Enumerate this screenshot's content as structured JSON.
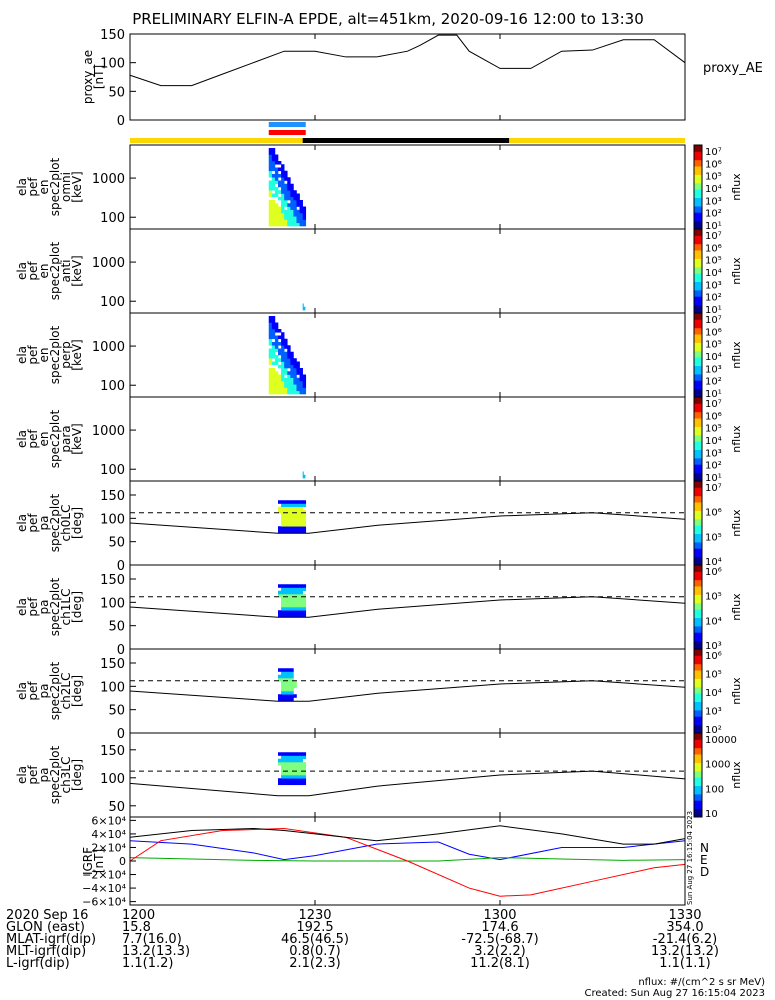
{
  "title": "PRELIMINARY ELFIN-A EPDE, alt=451km, 2020-09-16 12:00 to 13:30",
  "chart_data": [
    {
      "id": "proxy_ae",
      "type": "line",
      "ylabel": [
        "proxy_ae",
        "[nT]"
      ],
      "legend": "proxy_AE",
      "ylim": [
        0,
        150
      ],
      "yticks": [
        "0",
        "50",
        "100",
        "150"
      ],
      "x": [
        0,
        5,
        10,
        15,
        20,
        25,
        30,
        35,
        40,
        45,
        47,
        50,
        53,
        55,
        60,
        65,
        70,
        75,
        80,
        85,
        90
      ],
      "values": [
        78,
        60,
        60,
        80,
        100,
        120,
        120,
        110,
        110,
        120,
        130,
        148,
        148,
        120,
        90,
        90,
        120,
        122,
        140,
        140,
        100
      ]
    },
    {
      "id": "en_omni",
      "type": "heatmap",
      "ylabel": [
        "ela",
        "pef",
        "en",
        "spec2plot",
        "omni",
        "[keV]"
      ],
      "yticks": [
        "100",
        "1000"
      ],
      "ylim_keV": [
        50,
        7000
      ],
      "data_window_min": [
        22.5,
        28.5
      ],
      "colorbar": {
        "label": "nflux",
        "ticks": [
          "10⁷",
          "10⁶",
          "10⁵",
          "10⁴",
          "10³",
          "10²",
          "10¹"
        ]
      }
    },
    {
      "id": "en_anti",
      "type": "heatmap",
      "ylabel": [
        "ela",
        "pef",
        "en",
        "spec2plot",
        "anti",
        "[keV]"
      ],
      "yticks": [
        "100",
        "1000"
      ],
      "ylim_keV": [
        50,
        7000
      ],
      "data_window_min": [
        28.0,
        28.4
      ],
      "colorbar": {
        "label": "nflux",
        "ticks": [
          "10⁷",
          "10⁶",
          "10⁵",
          "10⁴",
          "10³",
          "10²",
          "10¹"
        ]
      }
    },
    {
      "id": "en_perp",
      "type": "heatmap",
      "ylabel": [
        "ela",
        "pef",
        "en",
        "spec2plot",
        "perp",
        "[keV]"
      ],
      "yticks": [
        "100",
        "1000"
      ],
      "ylim_keV": [
        50,
        7000
      ],
      "data_window_min": [
        22.5,
        28.5
      ],
      "colorbar": {
        "label": "nflux",
        "ticks": [
          "10⁷",
          "10⁶",
          "10⁵",
          "10⁴",
          "10³",
          "10²",
          "10¹"
        ]
      }
    },
    {
      "id": "en_para",
      "type": "heatmap",
      "ylabel": [
        "ela",
        "pef",
        "en",
        "spec2plot",
        "para",
        "[keV]"
      ],
      "yticks": [
        "100",
        "1000"
      ],
      "ylim_keV": [
        50,
        7000
      ],
      "data_window_min": [
        28.0,
        28.4
      ],
      "colorbar": {
        "label": "nflux",
        "ticks": [
          "10⁷",
          "10⁶",
          "10⁵",
          "10⁴",
          "10³",
          "10²",
          "10¹"
        ]
      }
    },
    {
      "id": "ch0LC",
      "type": "heatmap",
      "ylabel": [
        "ela",
        "pef",
        "pa",
        "spec2plot",
        "ch0LC",
        "[deg]"
      ],
      "yticks": [
        "0",
        "50",
        "100",
        "150"
      ],
      "ylim": [
        0,
        180
      ],
      "data_window_min": [
        24.0,
        28.5
      ],
      "loss_cone": {
        "x": [
          0,
          24,
          29,
          40,
          60,
          75,
          90
        ],
        "values": [
          90,
          68,
          68,
          85,
          105,
          112,
          98
        ]
      },
      "dashed_level": 112,
      "colorbar": {
        "label": "nflux",
        "ticks": [
          "10⁷",
          "10⁶",
          "10⁵",
          "10⁴"
        ]
      }
    },
    {
      "id": "ch1LC",
      "type": "heatmap",
      "ylabel": [
        "ela",
        "pef",
        "pa",
        "spec2plot",
        "ch1LC",
        "[deg]"
      ],
      "yticks": [
        "0",
        "50",
        "100",
        "150"
      ],
      "ylim": [
        0,
        180
      ],
      "data_window_min": [
        24.0,
        28.5
      ],
      "loss_cone": {
        "x": [
          0,
          24,
          29,
          40,
          60,
          75,
          90
        ],
        "values": [
          90,
          68,
          68,
          85,
          105,
          112,
          98
        ]
      },
      "dashed_level": 112,
      "colorbar": {
        "label": "nflux",
        "ticks": [
          "10⁶",
          "10⁵",
          "10⁴",
          "10³"
        ]
      }
    },
    {
      "id": "ch2LC",
      "type": "heatmap",
      "ylabel": [
        "ela",
        "pef",
        "pa",
        "spec2plot",
        "ch2LC",
        "[deg]"
      ],
      "yticks": [
        "0",
        "50",
        "100",
        "150"
      ],
      "ylim": [
        0,
        180
      ],
      "data_window_min": [
        24.0,
        27.0
      ],
      "loss_cone": {
        "x": [
          0,
          24,
          29,
          40,
          60,
          75,
          90
        ],
        "values": [
          90,
          68,
          68,
          85,
          105,
          112,
          98
        ]
      },
      "dashed_level": 112,
      "colorbar": {
        "label": "nflux",
        "ticks": [
          "10⁶",
          "10⁵",
          "10⁴",
          "10³",
          "10²"
        ]
      }
    },
    {
      "id": "ch3LC",
      "type": "heatmap",
      "ylabel": [
        "ela",
        "pef",
        "pa",
        "spec2plot",
        "ch3LC",
        "[deg]"
      ],
      "yticks": [
        "50",
        "100",
        "150"
      ],
      "ylim": [
        30,
        180
      ],
      "data_window_min": [
        24.0,
        28.5
      ],
      "loss_cone": {
        "x": [
          0,
          24,
          29,
          40,
          60,
          75,
          90
        ],
        "values": [
          90,
          68,
          68,
          85,
          105,
          112,
          98
        ]
      },
      "dashed_level": 112,
      "colorbar": {
        "label": "nflux",
        "ticks": [
          "10000",
          "1000",
          "100",
          "10"
        ]
      }
    },
    {
      "id": "igrf",
      "type": "line",
      "ylabel": [
        "IGRF",
        "[nT]"
      ],
      "ylim": [
        -65000,
        65000
      ],
      "yticks": [
        "6×10⁴",
        "4×10⁴",
        "2×10⁴",
        "0",
        "−2×10⁴",
        "−4×10⁴",
        "−6×10⁴"
      ],
      "ytick_values": [
        60000,
        40000,
        20000,
        0,
        -20000,
        -40000,
        -60000
      ],
      "series": [
        {
          "name": "N",
          "color": "#0000ff",
          "x": [
            0,
            10,
            20,
            25,
            30,
            40,
            50,
            55,
            60,
            70,
            80,
            90
          ],
          "values": [
            30000,
            25000,
            12000,
            2000,
            8000,
            25000,
            28000,
            10000,
            2000,
            20000,
            20000,
            30000
          ]
        },
        {
          "name": "E",
          "color": "#00aa00",
          "x": [
            0,
            10,
            20,
            30,
            40,
            50,
            60,
            70,
            80,
            90
          ],
          "values": [
            5000,
            3000,
            1000,
            0,
            0,
            0,
            5000,
            3000,
            1000,
            2000
          ]
        },
        {
          "name": "D",
          "color": "#ff0000",
          "x": [
            0,
            5,
            15,
            25,
            35,
            45,
            55,
            60,
            65,
            75,
            85,
            90
          ],
          "values": [
            0,
            30000,
            45000,
            48000,
            35000,
            0,
            -40000,
            -52000,
            -50000,
            -30000,
            -10000,
            -5000
          ]
        },
        {
          "name": "",
          "color": "#000000",
          "x": [
            0,
            10,
            20,
            25,
            30,
            40,
            50,
            60,
            70,
            80,
            85,
            90
          ],
          "values": [
            35000,
            45000,
            48000,
            45000,
            40000,
            30000,
            40000,
            52000,
            40000,
            25000,
            25000,
            33000
          ]
        }
      ]
    }
  ],
  "status_bars": {
    "science_bars": [
      {
        "color": "#1e90ff",
        "start_min": 22.5,
        "end_min": 28.5
      },
      {
        "color": "#ff0000",
        "start_min": 22.5,
        "end_min": 28.5
      }
    ],
    "sun_shadow": [
      {
        "color": "#ffd700",
        "start_min": 0,
        "end_min": 28
      },
      {
        "color": "#000000",
        "start_min": 28,
        "end_min": 61.5
      },
      {
        "color": "#ffd700",
        "start_min": 61.5,
        "end_min": 90
      }
    ]
  },
  "xaxis": {
    "xlim_min": [
      0,
      90
    ],
    "ticks": [
      {
        "label": "1200",
        "min": 0
      },
      {
        "label": "1230",
        "min": 30
      },
      {
        "label": "1300",
        "min": 60
      },
      {
        "label": "1330",
        "min": 90
      }
    ]
  },
  "annotation_rows": [
    {
      "label": "2020 Sep 16",
      "values": [
        "1200",
        "1230",
        "1300",
        "1330"
      ]
    },
    {
      "label": "GLON (east)",
      "values": [
        "15.8",
        "192.5",
        "174.6",
        "354.0"
      ]
    },
    {
      "label": "MLAT-igrf(dip)",
      "values": [
        "7.7(16.0)",
        "46.5(46.5)",
        "-72.5(-68.7)",
        "-21.4(6.2)"
      ]
    },
    {
      "label": "MLT-igrf(dip)",
      "values": [
        "13.2(13.3)",
        "0.8(0.7)",
        "3.2(2.2)",
        "13.2(13.2)"
      ]
    },
    {
      "label": "L-igrf(dip)",
      "values": [
        "1.1(1.2)",
        "2.1(2.3)",
        "11.2(8.1)",
        "1.1(1.1)"
      ]
    }
  ],
  "footer": {
    "units": "nflux: #/(cm^2 s sr MeV)",
    "created": "Created: Sun Aug 27 16:15:04 2023",
    "side_stamp": "Sun Aug 27 16:15:04 2023"
  }
}
